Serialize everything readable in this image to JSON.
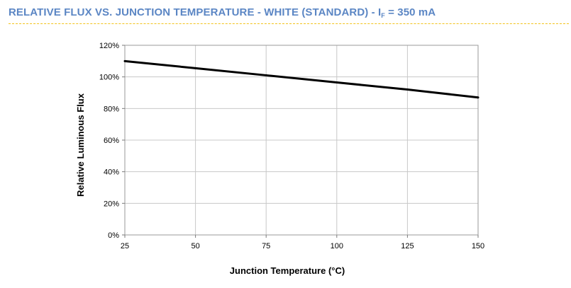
{
  "header": {
    "title_prefix": "RELATIVE FLUX VS. JUNCTION TEMPERATURE - WHITE (STANDARD) - I",
    "title_subscript": "F",
    "title_suffix": " = 350 mA"
  },
  "colors": {
    "title": "#5b86c4",
    "divider": "#f2c21b",
    "line": "#000000",
    "grid": "#c8c8c8"
  },
  "chart_data": {
    "type": "line",
    "title": "RELATIVE FLUX VS. JUNCTION TEMPERATURE - WHITE (STANDARD) - IF = 350 mA",
    "xlabel": "Junction Temperature (°C)",
    "ylabel": "Relative Luminous Flux",
    "xlim": [
      25,
      150
    ],
    "ylim": [
      0,
      120
    ],
    "grid": true,
    "legend": "none",
    "x_ticks": [
      {
        "value": 25,
        "label": "25"
      },
      {
        "value": 50,
        "label": "50"
      },
      {
        "value": 75,
        "label": "75"
      },
      {
        "value": 100,
        "label": "100"
      },
      {
        "value": 125,
        "label": "125"
      },
      {
        "value": 150,
        "label": "150"
      }
    ],
    "y_ticks": [
      {
        "value": 0,
        "label": "0%"
      },
      {
        "value": 20,
        "label": "20%"
      },
      {
        "value": 40,
        "label": "40%"
      },
      {
        "value": 60,
        "label": "60%"
      },
      {
        "value": 80,
        "label": "80%"
      },
      {
        "value": 100,
        "label": "100%"
      },
      {
        "value": 120,
        "label": "120%"
      }
    ],
    "series": [
      {
        "name": "White (Standard)",
        "x": [
          25,
          50,
          75,
          100,
          125,
          150
        ],
        "y": [
          110,
          105.5,
          101,
          96.5,
          92,
          87
        ]
      }
    ]
  }
}
